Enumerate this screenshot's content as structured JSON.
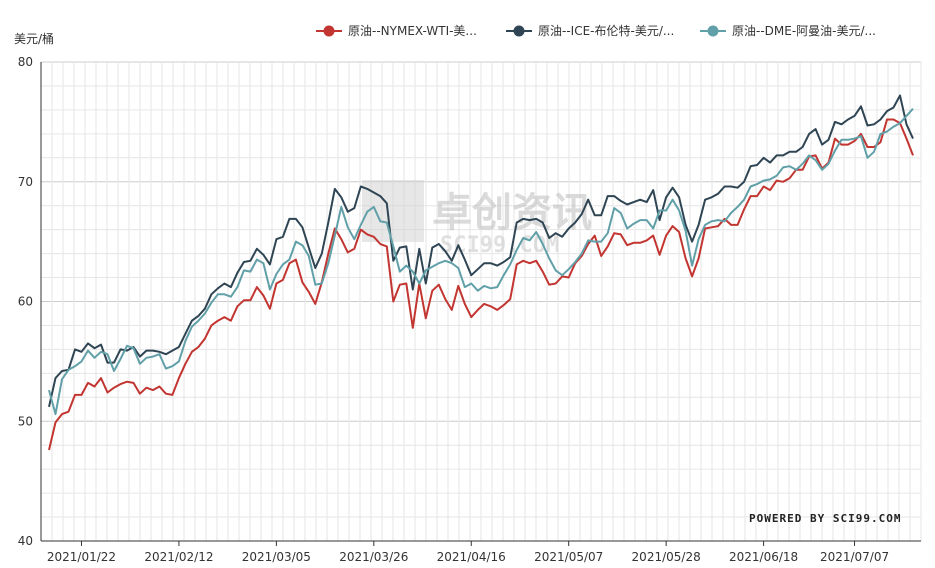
{
  "chart_data": {
    "type": "line",
    "unit_label": "美元/桶",
    "ylim": [
      40,
      80
    ],
    "y_ticks": [
      40,
      50,
      60,
      70,
      80
    ],
    "x_tick_labels": [
      "2021/01/22",
      "2021/02/12",
      "2021/03/05",
      "2021/03/26",
      "2021/04/16",
      "2021/05/07",
      "2021/05/28",
      "2021/06/18",
      "2021/07/07"
    ],
    "x_tick_index": [
      5,
      20,
      35,
      50,
      65,
      80,
      95,
      110,
      124
    ],
    "grid": true,
    "legend_position": "top",
    "watermark": "卓创资讯 SCI99.COM",
    "footer": "POWERED BY SCI99.COM",
    "series": [
      {
        "name": "原油--NYMEX-WTI-美...",
        "color": "#c23531",
        "values": [
          47.6,
          49.9,
          50.6,
          50.8,
          52.2,
          52.2,
          53.2,
          52.9,
          53.6,
          52.4,
          52.8,
          53.1,
          53.3,
          53.2,
          52.3,
          52.8,
          52.6,
          52.9,
          52.3,
          52.2,
          53.6,
          54.8,
          55.8,
          56.2,
          56.9,
          58.0,
          58.4,
          58.7,
          58.4,
          59.6,
          60.1,
          60.1,
          61.2,
          60.5,
          59.4,
          61.5,
          61.8,
          63.2,
          63.5,
          61.6,
          60.8,
          59.8,
          61.6,
          64.0,
          66.1,
          65.2,
          64.1,
          64.4,
          66.0,
          65.6,
          65.4,
          64.8,
          64.6,
          60.0,
          61.4,
          61.5,
          57.8,
          61.5,
          58.6,
          60.9,
          61.4,
          60.2,
          59.3,
          61.3,
          59.8,
          58.7,
          59.3,
          59.8,
          59.6,
          59.3,
          59.7,
          60.2,
          63.1,
          63.4,
          63.2,
          63.4,
          62.5,
          61.4,
          61.5,
          62.1,
          62.0,
          63.2,
          63.8,
          64.8,
          65.5,
          63.8,
          64.6,
          65.7,
          65.6,
          64.7,
          64.9,
          64.9,
          65.1,
          65.5,
          63.9,
          65.5,
          66.3,
          65.8,
          63.6,
          62.1,
          63.6,
          66.1,
          66.2,
          66.3,
          66.9,
          66.4,
          66.4,
          67.7,
          68.8,
          68.8,
          69.6,
          69.3,
          70.1,
          70.0,
          70.3,
          71.0,
          71.0,
          72.1,
          72.2,
          71.1,
          71.6,
          73.6,
          73.1,
          73.1,
          73.4,
          74.0,
          72.9,
          72.9,
          73.3,
          75.2,
          75.2,
          74.9,
          73.6,
          72.2
        ]
      },
      {
        "name": "原油--ICE-布伦特-美元/...",
        "color": "#2f4554",
        "values": [
          51.2,
          53.6,
          54.2,
          54.3,
          56.0,
          55.8,
          56.5,
          56.1,
          56.4,
          54.9,
          54.9,
          56.0,
          55.9,
          56.2,
          55.4,
          55.9,
          55.9,
          55.8,
          55.6,
          55.9,
          56.2,
          57.3,
          58.4,
          58.8,
          59.4,
          60.6,
          61.1,
          61.5,
          61.2,
          62.4,
          63.3,
          63.4,
          64.4,
          63.9,
          63.1,
          65.2,
          65.4,
          66.9,
          66.9,
          66.2,
          64.5,
          62.8,
          64.0,
          66.6,
          69.4,
          68.7,
          67.5,
          67.8,
          69.6,
          69.4,
          69.1,
          68.8,
          68.2,
          63.4,
          64.5,
          64.6,
          61.0,
          64.4,
          61.5,
          64.5,
          64.8,
          64.2,
          63.4,
          64.7,
          63.5,
          62.2,
          62.7,
          63.2,
          63.2,
          63.0,
          63.3,
          63.7,
          66.6,
          66.9,
          66.8,
          66.9,
          66.6,
          65.3,
          65.7,
          65.4,
          66.1,
          66.6,
          67.3,
          68.5,
          67.2,
          67.2,
          68.8,
          68.8,
          68.4,
          68.1,
          68.3,
          68.5,
          68.3,
          69.3,
          66.8,
          68.7,
          69.5,
          68.7,
          66.4,
          65.0,
          66.4,
          68.5,
          68.7,
          69.0,
          69.6,
          69.6,
          69.5,
          70.0,
          71.3,
          71.4,
          72.0,
          71.6,
          72.2,
          72.2,
          72.5,
          72.5,
          72.9,
          74.0,
          74.4,
          73.1,
          73.5,
          75.0,
          74.8,
          75.2,
          75.5,
          76.3,
          74.7,
          74.8,
          75.2,
          75.9,
          76.2,
          77.2,
          74.8,
          73.6
        ]
      },
      {
        "name": "原油--DME-阿曼油-美元/...",
        "color": "#61a0a8",
        "values": [
          52.6,
          50.6,
          53.5,
          54.3,
          54.6,
          55.0,
          55.9,
          55.3,
          55.8,
          55.6,
          54.2,
          55.2,
          56.3,
          56.1,
          54.8,
          55.3,
          55.4,
          55.6,
          54.4,
          54.6,
          55.0,
          56.7,
          57.9,
          58.4,
          59.0,
          59.9,
          60.6,
          60.6,
          60.4,
          61.2,
          62.6,
          62.5,
          63.5,
          63.2,
          61.0,
          62.3,
          63.1,
          63.5,
          65.0,
          64.7,
          63.8,
          61.4,
          61.5,
          63.2,
          65.5,
          67.9,
          66.2,
          65.2,
          66.4,
          67.5,
          67.9,
          66.7,
          66.6,
          64.6,
          62.5,
          63.0,
          62.5,
          61.5,
          62.6,
          62.9,
          63.2,
          63.4,
          63.2,
          62.8,
          61.2,
          61.5,
          60.9,
          61.3,
          61.1,
          61.2,
          62.2,
          63.1,
          64.3,
          65.3,
          65.1,
          65.8,
          64.8,
          63.6,
          62.6,
          62.2,
          62.7,
          63.3,
          64.0,
          65.1,
          65.0,
          65.0,
          65.7,
          67.8,
          67.4,
          66.1,
          66.5,
          66.8,
          66.8,
          66.1,
          67.6,
          67.6,
          68.5,
          67.6,
          65.9,
          63.0,
          65.2,
          66.4,
          66.7,
          66.8,
          66.7,
          67.4,
          67.9,
          68.5,
          69.6,
          69.8,
          70.1,
          70.2,
          70.5,
          71.2,
          71.3,
          71.0,
          71.5,
          72.2,
          71.8,
          71.0,
          71.5,
          72.6,
          73.5,
          73.5,
          73.6,
          73.8,
          72.0,
          72.5,
          74.0,
          74.2,
          74.6,
          74.9,
          75.5,
          76.1
        ]
      }
    ]
  }
}
